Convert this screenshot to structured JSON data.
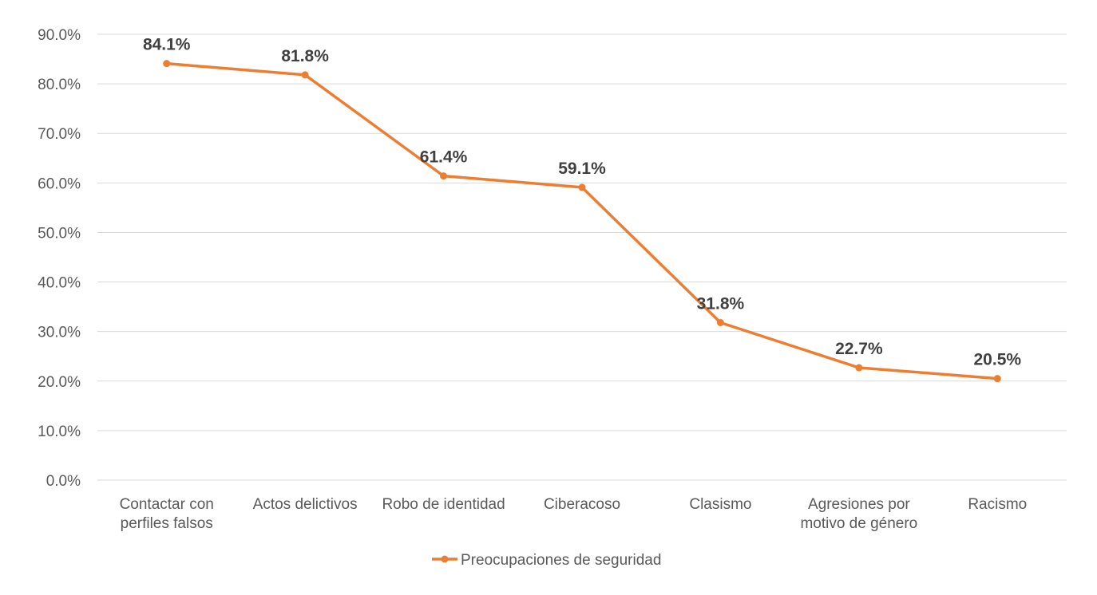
{
  "chart_data": {
    "type": "line",
    "categories": [
      [
        "Contactar con",
        "perfiles falsos"
      ],
      [
        "Actos delictivos"
      ],
      [
        "Robo de identidad"
      ],
      [
        "Ciberacoso"
      ],
      [
        "Clasismo"
      ],
      [
        "Agresiones por",
        "motivo de género"
      ],
      [
        "Racismo"
      ]
    ],
    "series": [
      {
        "name": "Preocupaciones de seguridad",
        "values": [
          84.1,
          81.8,
          61.4,
          59.1,
          31.8,
          22.7,
          20.5
        ],
        "data_labels": [
          "84.1%",
          "81.8%",
          "61.4%",
          "59.1%",
          "31.8%",
          "22.7%",
          "20.5%"
        ],
        "color": "#ED7D31"
      }
    ],
    "y_ticks": [
      "0.0%",
      "10.0%",
      "20.0%",
      "30.0%",
      "40.0%",
      "50.0%",
      "60.0%",
      "70.0%",
      "80.0%",
      "90.0%"
    ],
    "ylim": [
      0,
      90
    ],
    "grid": true,
    "legend": "bottom",
    "title": "",
    "xlabel": "",
    "ylabel": ""
  }
}
